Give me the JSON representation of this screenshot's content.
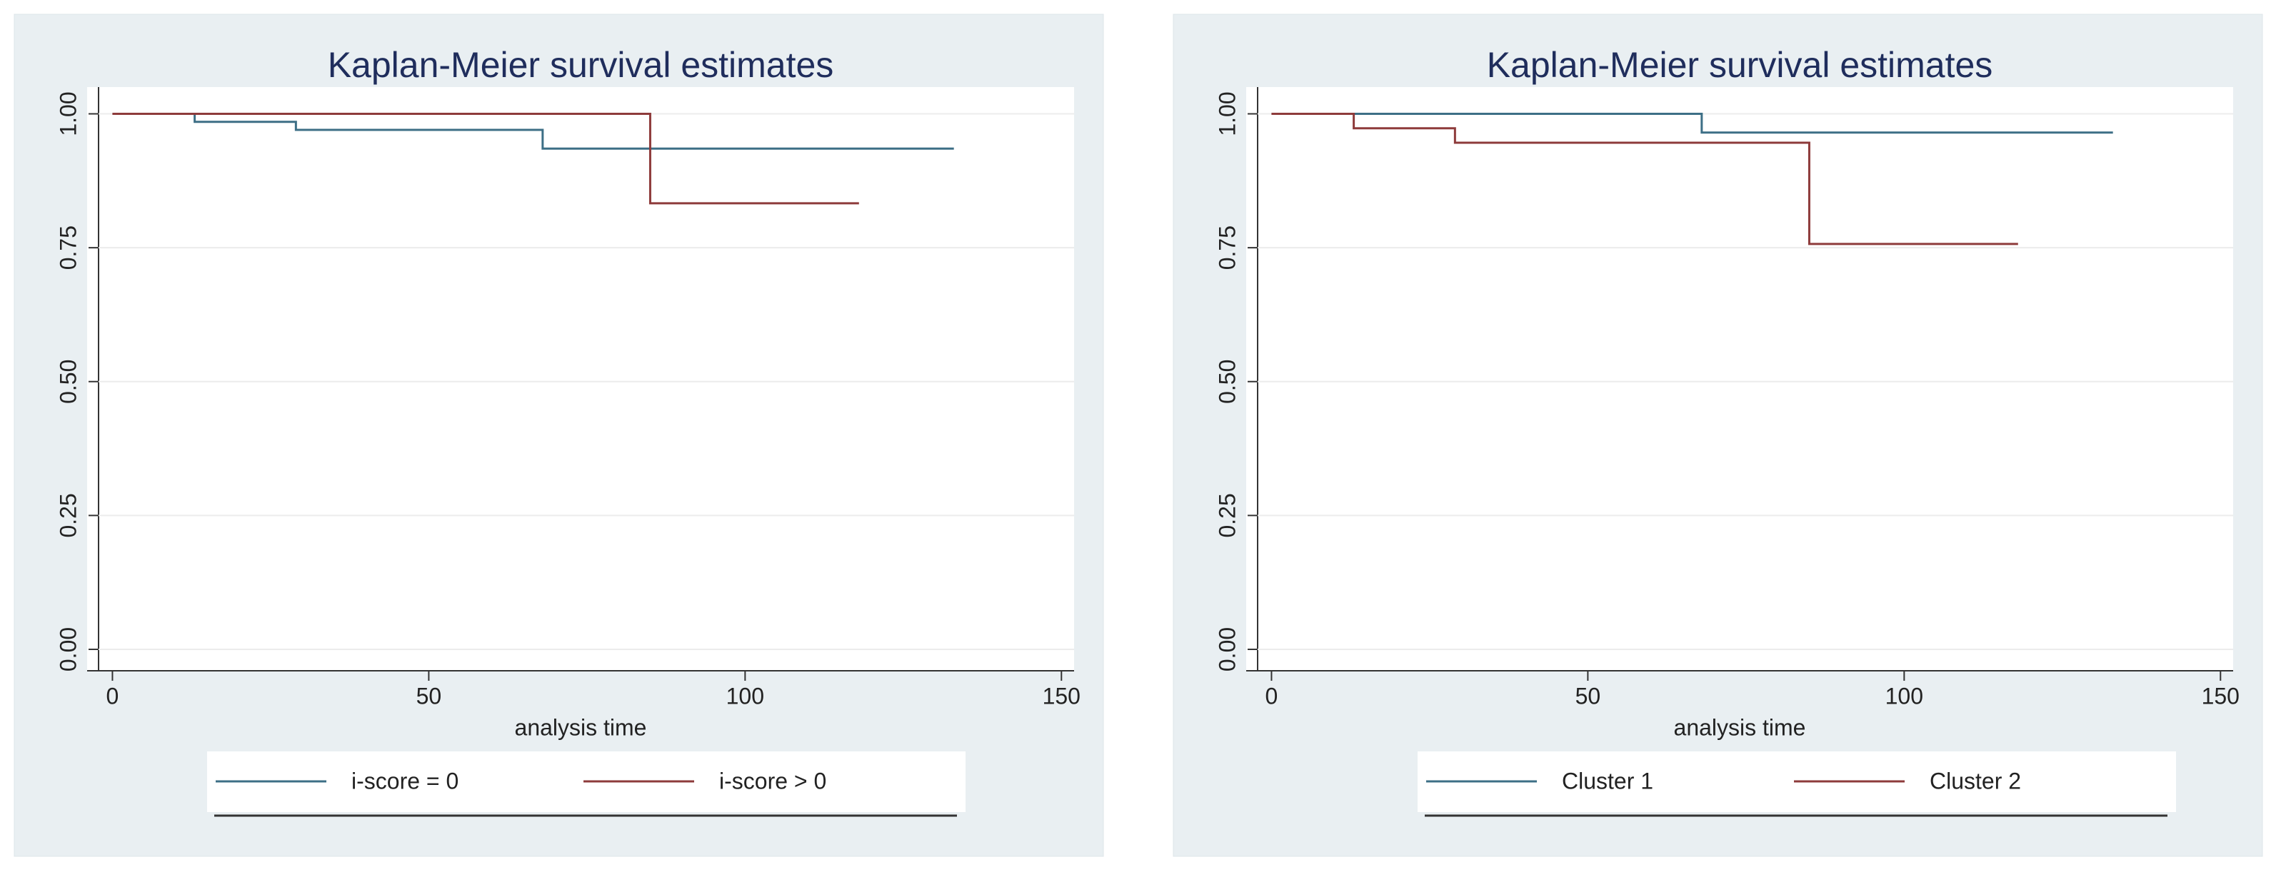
{
  "chart_data": [
    {
      "type": "line",
      "drawstyle": "steps-post",
      "title": "Kaplan-Meier survival estimates",
      "x_label": "analysis time",
      "series": [
        {
          "name": "i-score = 0",
          "color": "#3d6f86",
          "x": [
            0,
            13,
            29,
            68,
            133
          ],
          "values": [
            1.0,
            0.985,
            0.97,
            0.935,
            0.935
          ]
        },
        {
          "name": "i-score > 0",
          "color": "#8e3b3b",
          "x": [
            0,
            85,
            118
          ],
          "values": [
            1.0,
            0.833,
            0.833
          ]
        }
      ],
      "xlim": [
        -4,
        152
      ],
      "ylim": [
        -0.04,
        1.05
      ],
      "xticks": [
        0,
        50,
        100,
        150
      ],
      "yticks": [
        {
          "value": 0,
          "label": "0.00"
        },
        {
          "value": 0.25,
          "label": "0.25"
        },
        {
          "value": 0.5,
          "label": "0.50"
        },
        {
          "value": 0.75,
          "label": "0.75"
        },
        {
          "value": 1,
          "label": "1.00"
        }
      ],
      "grid": true
    },
    {
      "type": "line",
      "drawstyle": "steps-post",
      "title": "Kaplan-Meier survival estimates",
      "x_label": "analysis time",
      "series": [
        {
          "name": "Cluster 1",
          "color": "#3d6f86",
          "x": [
            0,
            68,
            133
          ],
          "values": [
            1.0,
            0.965,
            0.965
          ]
        },
        {
          "name": "Cluster 2",
          "color": "#8e3b3b",
          "x": [
            0,
            13,
            29,
            85,
            118
          ],
          "values": [
            1.0,
            0.973,
            0.946,
            0.757,
            0.757
          ]
        }
      ],
      "xlim": [
        -4,
        152
      ],
      "ylim": [
        -0.04,
        1.05
      ],
      "xticks": [
        0,
        50,
        100,
        150
      ],
      "yticks": [
        {
          "value": 0,
          "label": "0.00"
        },
        {
          "value": 0.25,
          "label": "0.25"
        },
        {
          "value": 0.5,
          "label": "0.50"
        },
        {
          "value": 0.75,
          "label": "0.75"
        },
        {
          "value": 1,
          "label": "1.00"
        }
      ],
      "grid": true
    }
  ]
}
